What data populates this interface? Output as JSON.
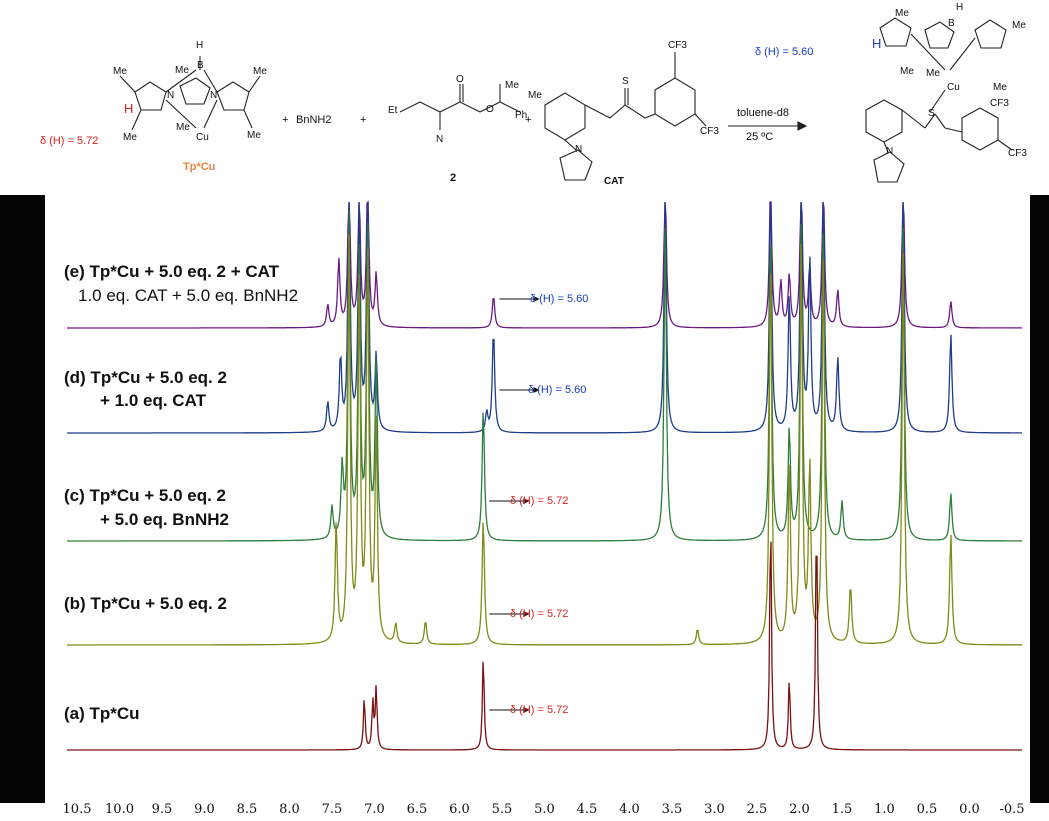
{
  "scheme": {
    "reactant_cat_name": "Tp*Cu",
    "reactant_cat_shift": "δ (H) = 5.72",
    "plus1": "+",
    "amine": "BnNH2",
    "plus2": "+",
    "diazo_label": "2",
    "plus3": "+",
    "catalyst_label": "CAT",
    "conditions_solvent": "toluene-d8",
    "conditions_temp": "25 ºC",
    "product_shift": "δ (H) = 5.60",
    "atoms": {
      "me": "Me",
      "h": "H",
      "b": "B",
      "n": "N",
      "cu": "Cu",
      "et": "Et",
      "o": "O",
      "ph": "Ph",
      "s": "S",
      "cf3": "CF3",
      "f3": "F3",
      "cf3_c": "CF"
    }
  },
  "chart_data": {
    "type": "line",
    "title": "",
    "xlabel": "",
    "ylabel": "",
    "xlim": [
      10.5,
      -0.5
    ],
    "x_reversed": true,
    "x_ticks": [
      "10.5",
      "10.0",
      "9.5",
      "9.0",
      "8.5",
      "8.0",
      "7.5",
      "7.0",
      "6.5",
      "6.0",
      "5.5",
      "5.0",
      "4.5",
      "4.0",
      "3.5",
      "3.0",
      "2.5",
      "2.0",
      "1.5",
      "1.0",
      "0.5",
      "0.0",
      "-0.5"
    ],
    "grid": false,
    "series": [
      {
        "id": "e",
        "label_main": "(e) Tp*Cu + 5.0 eq. 2 + CAT",
        "label_sub": "1.0 eq. CAT + 5.0 eq. BnNH2",
        "color": "#6b1a80",
        "annotation": "δ (H) = 5.60",
        "annotation_color": "#1a3cc8",
        "annotation_ppm": 5.6,
        "peaks": [
          {
            "ppm": 7.55,
            "height": 0.15
          },
          {
            "ppm": 7.42,
            "height": 0.45
          },
          {
            "ppm": 7.3,
            "height": 1.0
          },
          {
            "ppm": 7.18,
            "height": 0.9
          },
          {
            "ppm": 7.08,
            "height": 1.0
          },
          {
            "ppm": 6.98,
            "height": 0.35
          },
          {
            "ppm": 5.6,
            "height": 0.22
          },
          {
            "ppm": 3.58,
            "height": 1.0
          },
          {
            "ppm": 2.34,
            "height": 1.0
          },
          {
            "ppm": 2.22,
            "height": 0.3
          },
          {
            "ppm": 2.12,
            "height": 0.35
          },
          {
            "ppm": 1.98,
            "height": 1.0
          },
          {
            "ppm": 1.88,
            "height": 0.4
          },
          {
            "ppm": 1.72,
            "height": 1.0
          },
          {
            "ppm": 1.55,
            "height": 0.25
          },
          {
            "ppm": 0.78,
            "height": 1.0
          },
          {
            "ppm": 0.22,
            "height": 0.18
          }
        ]
      },
      {
        "id": "d",
        "label_main": "(d) Tp*Cu + 5.0 eq. 2",
        "label_sub": "+ 1.0 eq. CAT",
        "color": "#1e3d8a",
        "annotation": "δ (H) = 5.60",
        "annotation_color": "#1a3cc8",
        "annotation_ppm": 5.6,
        "peaks": [
          {
            "ppm": 7.55,
            "height": 0.12
          },
          {
            "ppm": 7.4,
            "height": 0.3
          },
          {
            "ppm": 7.3,
            "height": 1.0
          },
          {
            "ppm": 7.18,
            "height": 0.9
          },
          {
            "ppm": 7.08,
            "height": 1.0
          },
          {
            "ppm": 6.98,
            "height": 0.3
          },
          {
            "ppm": 5.6,
            "height": 0.42
          },
          {
            "ppm": 5.68,
            "height": 0.08
          },
          {
            "ppm": 3.58,
            "height": 1.0
          },
          {
            "ppm": 2.34,
            "height": 1.0
          },
          {
            "ppm": 2.12,
            "height": 0.55
          },
          {
            "ppm": 1.98,
            "height": 1.0
          },
          {
            "ppm": 1.88,
            "height": 0.7
          },
          {
            "ppm": 1.72,
            "height": 1.0
          },
          {
            "ppm": 1.55,
            "height": 0.3
          },
          {
            "ppm": 0.78,
            "height": 1.0
          },
          {
            "ppm": 0.22,
            "height": 0.4
          }
        ]
      },
      {
        "id": "c",
        "label_main": "(c) Tp*Cu + 5.0 eq. 2",
        "label_sub": "+ 5.0 eq. BnNH2",
        "color": "#2e7d3a",
        "annotation": "δ (H) = 5.72",
        "annotation_color": "#e02020",
        "annotation_ppm": 5.72,
        "peaks": [
          {
            "ppm": 7.5,
            "height": 0.1
          },
          {
            "ppm": 7.38,
            "height": 0.22
          },
          {
            "ppm": 7.3,
            "height": 1.0
          },
          {
            "ppm": 7.18,
            "height": 0.9
          },
          {
            "ppm": 7.08,
            "height": 1.0
          },
          {
            "ppm": 6.98,
            "height": 0.55
          },
          {
            "ppm": 5.72,
            "height": 0.42
          },
          {
            "ppm": 3.58,
            "height": 1.0
          },
          {
            "ppm": 2.34,
            "height": 1.0
          },
          {
            "ppm": 2.12,
            "height": 0.35
          },
          {
            "ppm": 1.98,
            "height": 1.0
          },
          {
            "ppm": 1.72,
            "height": 1.0
          },
          {
            "ppm": 1.5,
            "height": 0.12
          },
          {
            "ppm": 0.78,
            "height": 1.0
          },
          {
            "ppm": 0.22,
            "height": 0.15
          }
        ]
      },
      {
        "id": "b",
        "label_main": "(b) Tp*Cu + 5.0 eq. 2",
        "label_sub": "",
        "color": "#7f8a18",
        "annotation": "δ (H) = 5.72",
        "annotation_color": "#e02020",
        "annotation_ppm": 5.72,
        "peaks": [
          {
            "ppm": 7.45,
            "height": 0.3
          },
          {
            "ppm": 7.3,
            "height": 1.0
          },
          {
            "ppm": 7.18,
            "height": 0.9
          },
          {
            "ppm": 7.08,
            "height": 1.0
          },
          {
            "ppm": 6.98,
            "height": 0.55
          },
          {
            "ppm": 6.75,
            "height": 0.05
          },
          {
            "ppm": 6.4,
            "height": 0.06
          },
          {
            "ppm": 5.72,
            "height": 0.32
          },
          {
            "ppm": 3.2,
            "height": 0.04
          },
          {
            "ppm": 2.34,
            "height": 1.0
          },
          {
            "ppm": 2.12,
            "height": 0.45
          },
          {
            "ppm": 1.98,
            "height": 1.0
          },
          {
            "ppm": 1.88,
            "height": 0.45
          },
          {
            "ppm": 1.72,
            "height": 1.0
          },
          {
            "ppm": 1.4,
            "height": 0.15
          },
          {
            "ppm": 0.78,
            "height": 1.0
          },
          {
            "ppm": 0.22,
            "height": 0.28
          }
        ]
      },
      {
        "id": "a",
        "label_main": "(a) Tp*Cu",
        "label_sub": "",
        "color": "#7a1010",
        "annotation": "δ (H) = 5.72",
        "annotation_color": "#e02020",
        "annotation_ppm": 5.72,
        "peaks": [
          {
            "ppm": 7.12,
            "height": 0.22
          },
          {
            "ppm": 7.02,
            "height": 0.2
          },
          {
            "ppm": 6.98,
            "height": 0.26
          },
          {
            "ppm": 5.72,
            "height": 0.4
          },
          {
            "ppm": 2.34,
            "height": 1.0
          },
          {
            "ppm": 2.12,
            "height": 0.3
          },
          {
            "ppm": 1.8,
            "height": 1.0
          }
        ]
      }
    ]
  }
}
